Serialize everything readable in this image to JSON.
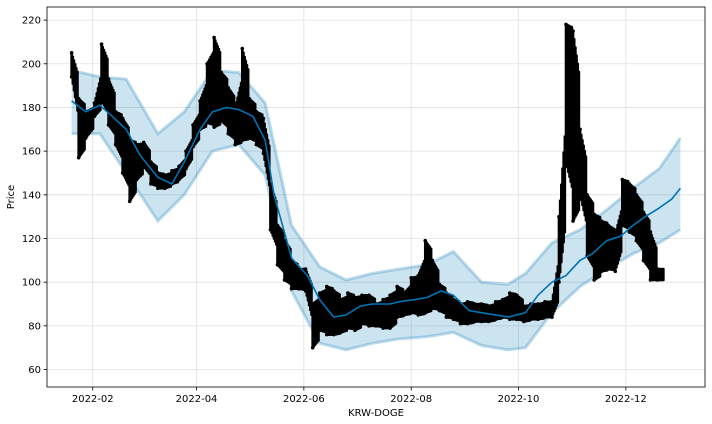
{
  "chart_data": {
    "type": "scatter",
    "title": "",
    "xlabel": "KRW-DOGE",
    "ylabel": "Price",
    "x_range": [
      "2022-01-06",
      "2023-01-15"
    ],
    "ylim": [
      52,
      226
    ],
    "grid": true,
    "x_ticks": [
      {
        "date": "2022-02-01",
        "label": "2022-02"
      },
      {
        "date": "2022-04-01",
        "label": "2022-04"
      },
      {
        "date": "2022-06-01",
        "label": "2022-06"
      },
      {
        "date": "2022-08-01",
        "label": "2022-08"
      },
      {
        "date": "2022-10-01",
        "label": "2022-10"
      },
      {
        "date": "2022-12-01",
        "label": "2022-12"
      }
    ],
    "y_ticks": [
      60,
      80,
      100,
      120,
      140,
      160,
      180,
      200,
      220
    ],
    "colors": {
      "observed": "#000000",
      "forecast": "#0072B2",
      "interval": "#0072B2",
      "grid": "#e0e0e0",
      "frame": "#000000"
    },
    "series": [
      {
        "kind": "forecast_interval",
        "x": [
          "2022-01-20",
          "2022-02-05",
          "2022-02-20",
          "2022-03-10",
          "2022-03-25",
          "2022-04-10",
          "2022-04-25",
          "2022-05-10",
          "2022-05-25",
          "2022-06-10",
          "2022-06-25",
          "2022-07-10",
          "2022-07-25",
          "2022-08-10",
          "2022-08-25",
          "2022-09-10",
          "2022-09-25",
          "2022-10-05",
          "2022-10-20",
          "2022-11-05",
          "2022-11-20",
          "2022-12-05",
          "2022-12-20",
          "2023-01-01"
        ],
        "upper": [
          197,
          194,
          193,
          168,
          178,
          197,
          196,
          182,
          126,
          107,
          101,
          104,
          106,
          108,
          114,
          100,
          99,
          104,
          118,
          124,
          133,
          143,
          152,
          166
        ],
        "lower": [
          168,
          168,
          150,
          128,
          140,
          160,
          163,
          149,
          96,
          72,
          69,
          72,
          74,
          75,
          77,
          71,
          69,
          70,
          86,
          98,
          106,
          113,
          118,
          124
        ]
      },
      {
        "kind": "forecast",
        "x": [
          "2022-01-20",
          "2022-01-28",
          "2022-02-05",
          "2022-02-12",
          "2022-02-20",
          "2022-02-28",
          "2022-03-10",
          "2022-03-18",
          "2022-03-25",
          "2022-04-03",
          "2022-04-10",
          "2022-04-18",
          "2022-04-25",
          "2022-05-03",
          "2022-05-10",
          "2022-05-15",
          "2022-05-25",
          "2022-06-03",
          "2022-06-10",
          "2022-06-18",
          "2022-06-25",
          "2022-07-03",
          "2022-07-10",
          "2022-07-20",
          "2022-07-25",
          "2022-08-03",
          "2022-08-10",
          "2022-08-18",
          "2022-08-25",
          "2022-09-03",
          "2022-09-10",
          "2022-09-18",
          "2022-09-25",
          "2022-10-05",
          "2022-10-12",
          "2022-10-20",
          "2022-10-28",
          "2022-11-05",
          "2022-11-12",
          "2022-11-20",
          "2022-11-28",
          "2022-12-05",
          "2022-12-12",
          "2022-12-20",
          "2022-12-27",
          "2023-01-01"
        ],
        "values": [
          183,
          178,
          181,
          176,
          170,
          158,
          148,
          145,
          155,
          170,
          178,
          180,
          179,
          176,
          165,
          140,
          111,
          103,
          92,
          84,
          85,
          89,
          90,
          90,
          91,
          92,
          93,
          96,
          94,
          87,
          86,
          85,
          84,
          86,
          94,
          100,
          103,
          110,
          113,
          119,
          121,
          126,
          130,
          134,
          138,
          143
        ]
      },
      {
        "kind": "observed",
        "x": [
          "2022-01-20",
          "2022-01-24",
          "2022-01-28",
          "2022-02-02",
          "2022-02-06",
          "2022-02-10",
          "2022-02-14",
          "2022-02-18",
          "2022-02-22",
          "2022-02-26",
          "2022-03-02",
          "2022-03-06",
          "2022-03-10",
          "2022-03-14",
          "2022-03-18",
          "2022-03-22",
          "2022-03-26",
          "2022-03-30",
          "2022-04-03",
          "2022-04-07",
          "2022-04-11",
          "2022-04-15",
          "2022-04-19",
          "2022-04-23",
          "2022-04-27",
          "2022-05-01",
          "2022-05-05",
          "2022-05-09",
          "2022-05-13",
          "2022-05-17",
          "2022-05-21",
          "2022-05-25",
          "2022-05-29",
          "2022-06-02",
          "2022-06-06",
          "2022-06-10",
          "2022-06-14",
          "2022-06-18",
          "2022-06-22",
          "2022-06-26",
          "2022-06-30",
          "2022-07-04",
          "2022-07-08",
          "2022-07-12",
          "2022-07-16",
          "2022-07-20",
          "2022-07-24",
          "2022-07-28",
          "2022-08-01",
          "2022-08-05",
          "2022-08-09",
          "2022-08-13",
          "2022-08-17",
          "2022-08-21",
          "2022-08-25",
          "2022-08-29",
          "2022-09-02",
          "2022-09-06",
          "2022-09-10",
          "2022-09-14",
          "2022-09-18",
          "2022-09-22",
          "2022-09-26",
          "2022-09-30",
          "2022-10-04",
          "2022-10-08",
          "2022-10-12",
          "2022-10-16",
          "2022-10-20",
          "2022-10-24",
          "2022-10-28",
          "2022-11-01",
          "2022-11-05",
          "2022-11-09",
          "2022-11-13",
          "2022-11-17",
          "2022-11-21",
          "2022-11-25",
          "2022-11-29",
          "2022-12-03",
          "2022-12-07",
          "2022-12-11",
          "2022-12-15",
          "2022-12-19"
        ],
        "lows": [
          194,
          157,
          166,
          176,
          183,
          172,
          163,
          150,
          137,
          147,
          153,
          145,
          143,
          143,
          145,
          147,
          152,
          162,
          170,
          173,
          171,
          174,
          168,
          163,
          165,
          166,
          163,
          159,
          124,
          108,
          101,
          97,
          97,
          96,
          70,
          78,
          76,
          76,
          77,
          79,
          78,
          81,
          80,
          80,
          79,
          79,
          84,
          85,
          86,
          85,
          86,
          88,
          87,
          84,
          83,
          81,
          81,
          82,
          82,
          82,
          83,
          84,
          83,
          83,
          82,
          83,
          83,
          84,
          84,
          100,
          155,
          128,
          140,
          112,
          101,
          105,
          106,
          105,
          126,
          123,
          119,
          110,
          101,
          101
        ],
        "highs": [
          205,
          184,
          178,
          182,
          209,
          193,
          178,
          175,
          165,
          163,
          164,
          155,
          150,
          149,
          151,
          153,
          160,
          172,
          183,
          200,
          212,
          196,
          189,
          180,
          207,
          184,
          178,
          175,
          145,
          126,
          119,
          110,
          106,
          106,
          90,
          95,
          98,
          96,
          92,
          95,
          93,
          94,
          94,
          90,
          92,
          94,
          98,
          95,
          102,
          103,
          119,
          110,
          99,
          95,
          92,
          90,
          91,
          90,
          90,
          89,
          91,
          92,
          95,
          94,
          89,
          90,
          90,
          91,
          91,
          130,
          218,
          215,
          170,
          140,
          131,
          128,
          126,
          122,
          147,
          145,
          140,
          132,
          123,
          106
        ]
      }
    ]
  }
}
